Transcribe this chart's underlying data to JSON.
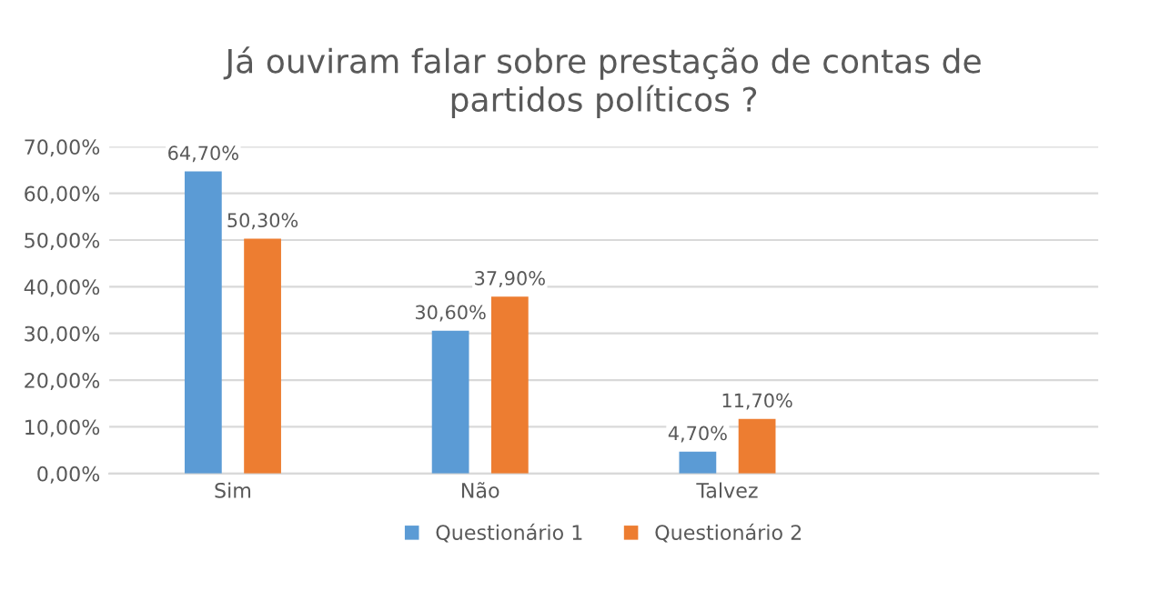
{
  "chart_data": {
    "type": "bar",
    "title": "Já ouviram falar sobre prestação de contas de\npartidos políticos ?",
    "categories": [
      "Sim",
      "Não",
      "Talvez",
      null
    ],
    "series": [
      {
        "name": "Questionário 1",
        "color": "#5b9bd5",
        "values": [
          64.7,
          30.6,
          4.7,
          null
        ],
        "value_labels": [
          "64,70%",
          "30,60%",
          "4,70%",
          null
        ]
      },
      {
        "name": "Questionário 2",
        "color": "#ed7d31",
        "values": [
          50.3,
          37.9,
          11.7,
          null
        ],
        "value_labels": [
          "50,30%",
          "37,90%",
          "11,70%",
          null
        ]
      }
    ],
    "ylim": [
      0,
      70
    ],
    "yticks": [
      {
        "value": 0,
        "label": "0,00%"
      },
      {
        "value": 10,
        "label": "10,00%"
      },
      {
        "value": 20,
        "label": "20,00%"
      },
      {
        "value": 30,
        "label": "30,00%"
      },
      {
        "value": 40,
        "label": "40,00%"
      },
      {
        "value": 50,
        "label": "50,00%"
      },
      {
        "value": 60,
        "label": "60,00%"
      },
      {
        "value": 70,
        "label": "70,00%"
      }
    ],
    "grid": "y",
    "legend": "bottom"
  }
}
